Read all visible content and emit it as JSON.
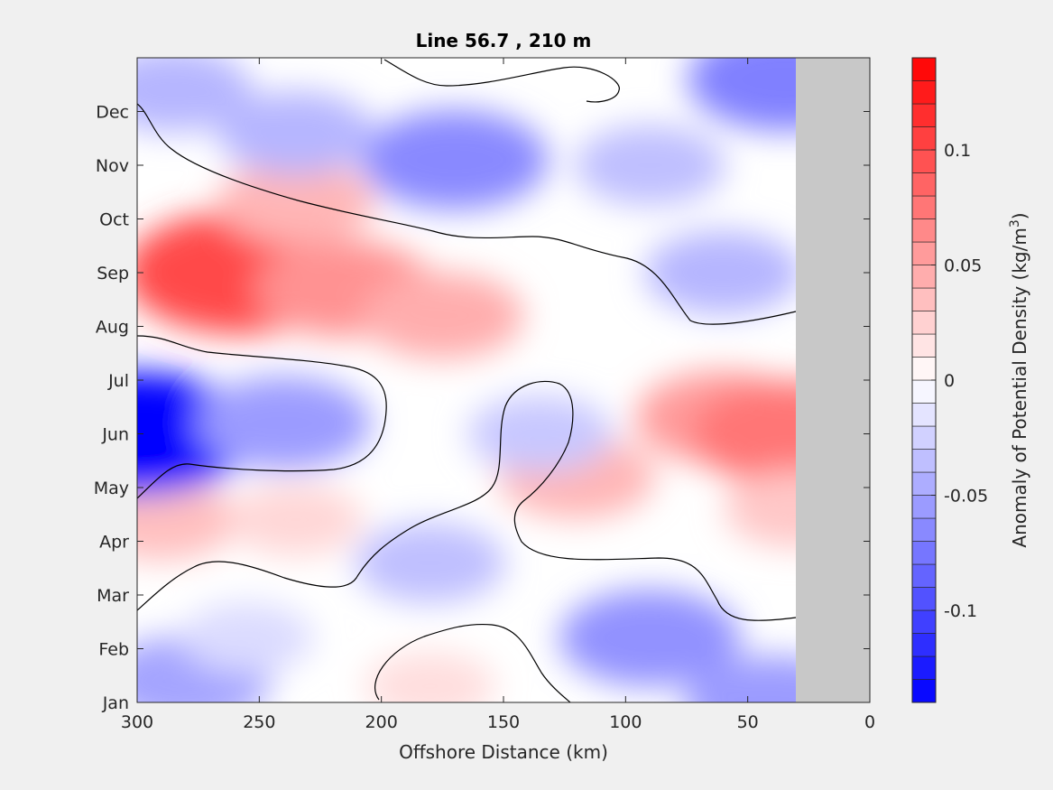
{
  "chart_data": {
    "type": "heatmap",
    "subtype": "filled-contour",
    "title": "Line 56.7 , 210 m",
    "xlabel": "Offshore Distance (km)",
    "ylabel": "",
    "xlim": [
      300,
      0
    ],
    "x_reversed": true,
    "x_ticks": [
      300,
      250,
      200,
      150,
      100,
      50,
      0
    ],
    "y_ticks": [
      "Jan",
      "Feb",
      "Mar",
      "Apr",
      "May",
      "Jun",
      "Jul",
      "Aug",
      "Sep",
      "Oct",
      "Nov",
      "Dec"
    ],
    "no_data_region_km": [
      0,
      30
    ],
    "no_data_color": "#c8c8c8",
    "zero_contour_color": "#000000",
    "colorbar": {
      "label_main": "Anomaly of Potential Density (kg/m",
      "label_sup": "3",
      "label_end": ")",
      "range": [
        -0.14,
        0.14
      ],
      "levels": 28,
      "ticks": [
        -0.1,
        -0.05,
        0,
        0.05,
        0.1
      ],
      "tick_labels": [
        "-0.1",
        "-0.05",
        "0",
        "0.05",
        "0.1"
      ],
      "color_min": "#0000ff",
      "color_mid": "#ffffff",
      "color_max": "#ff0000"
    },
    "features": [
      {
        "x_km": 258,
        "month": 9.0,
        "value": 0.1
      },
      {
        "x_km": 215,
        "month": 8.7,
        "value": 0.06
      },
      {
        "x_km": 175,
        "month": 8.2,
        "value": 0.045
      },
      {
        "x_km": 235,
        "month": 10.3,
        "value": 0.04
      },
      {
        "x_km": 60,
        "month": 6.3,
        "value": 0.055
      },
      {
        "x_km": 32,
        "month": 6.0,
        "value": 0.075
      },
      {
        "x_km": 120,
        "month": 5.2,
        "value": 0.04
      },
      {
        "x_km": 30,
        "month": 4.6,
        "value": 0.03
      },
      {
        "x_km": 290,
        "month": 4.4,
        "value": 0.035
      },
      {
        "x_km": 235,
        "month": 4.4,
        "value": 0.022
      },
      {
        "x_km": 180,
        "month": 1.3,
        "value": 0.018
      },
      {
        "x_km": 170,
        "month": 11.1,
        "value": -0.065
      },
      {
        "x_km": 235,
        "month": 11.6,
        "value": -0.04
      },
      {
        "x_km": 285,
        "month": 12.4,
        "value": -0.04
      },
      {
        "x_km": 90,
        "month": 11.0,
        "value": -0.035
      },
      {
        "x_km": 35,
        "month": 12.6,
        "value": -0.07
      },
      {
        "x_km": 60,
        "month": 9.0,
        "value": -0.04
      },
      {
        "x_km": 300,
        "month": 6.0,
        "value": -0.14
      },
      {
        "x_km": 240,
        "month": 6.2,
        "value": -0.055
      },
      {
        "x_km": 135,
        "month": 6.0,
        "value": -0.03
      },
      {
        "x_km": 180,
        "month": 3.6,
        "value": -0.035
      },
      {
        "x_km": 90,
        "month": 2.2,
        "value": -0.06
      },
      {
        "x_km": 40,
        "month": 1.0,
        "value": -0.055
      },
      {
        "x_km": 280,
        "month": 1.4,
        "value": -0.05
      },
      {
        "x_km": 255,
        "month": 2.2,
        "value": -0.02
      }
    ]
  }
}
